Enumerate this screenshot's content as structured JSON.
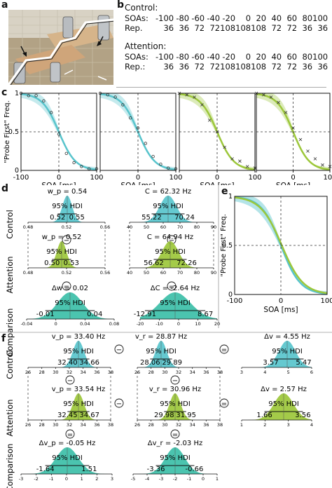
{
  "labels": {
    "a": "a",
    "b": "b",
    "c": "c",
    "d": "d",
    "e": "e",
    "f": "f"
  },
  "panel_b": {
    "control_title": "Control:",
    "attention_title": "Attention:",
    "soas_label": "SOAs:",
    "rep_label_control": "Rep.",
    "rep_label_attention": "Rep.:",
    "soas": [
      "-100",
      "-80",
      "-60",
      "-40",
      "-20",
      "0",
      "20",
      "40",
      "60",
      "80",
      "100"
    ],
    "rep_control": [
      "36",
      "36",
      "72",
      "72",
      "108",
      "108",
      "108",
      "72",
      "72",
      "36",
      "36"
    ],
    "rep_attention": [
      "36",
      "36",
      "72",
      "72",
      "108",
      "108",
      "108",
      "72",
      "72",
      "36",
      "36"
    ]
  },
  "panel_c": {
    "ylabel": "\"Probe First\" Freq.",
    "xlabel": "SOA [ms]",
    "yticks": [
      "1",
      "0.5",
      "0"
    ],
    "xticks": [
      "-100",
      "0",
      "100"
    ]
  },
  "panel_e": {
    "ylabel": "\"Probe First\" Freq.",
    "xlabel": "SOA [ms]",
    "yticks": [
      "1",
      "0.5",
      "0"
    ],
    "xticks": [
      "-100",
      "0",
      "100"
    ]
  },
  "row_labels": {
    "control": "Control",
    "attention": "Attention",
    "comparison": "Comparison"
  },
  "hdi": "95% HDI",
  "ops": {
    "minus": "−",
    "equals": "="
  },
  "panel_d": {
    "w_control": {
      "title": "w_p = 0.54",
      "lo": "0.52",
      "hi": "0.55",
      "ticks": [
        "0.48",
        "0.52",
        "0.56"
      ]
    },
    "w_attention": {
      "title": "w_p = 0.52",
      "lo": "0.50",
      "hi": "0.53",
      "ticks": [
        "0.48",
        "0.52",
        "0.56"
      ]
    },
    "w_comparison": {
      "title": "Δw = 0.02",
      "lo": "-0.01",
      "hi": "0.04",
      "ticks": [
        "-0.04",
        "0",
        "0.04",
        "0.08"
      ]
    },
    "c_control": {
      "title": "C = 62.32 Hz",
      "lo": "55.22",
      "hi": "70.24",
      "ticks": [
        "40",
        "50",
        "60",
        "70",
        "80",
        "90"
      ]
    },
    "c_attention": {
      "title": "C = 64.94 Hz",
      "lo": "56.62",
      "hi": "72.26",
      "ticks": [
        "40",
        "50",
        "60",
        "70",
        "80",
        "90"
      ]
    },
    "c_comparison": {
      "title": "ΔC = -2.64 Hz",
      "lo": "-12.91",
      "hi": "8.67",
      "ticks": [
        "-20",
        "-10",
        "0",
        "10",
        "20"
      ]
    }
  },
  "panel_f": {
    "vp_control": {
      "title": "v_p = 33.40 Hz",
      "lo": "32.40",
      "hi": "34.66",
      "ticks": [
        "26",
        "28",
        "30",
        "32",
        "34",
        "36",
        "38"
      ]
    },
    "vr_control": {
      "title": "v_r = 28.87 Hz",
      "lo": "28.06",
      "hi": "29.89",
      "ticks": [
        "26",
        "28",
        "30",
        "32",
        "34",
        "36",
        "38"
      ]
    },
    "dv_control": {
      "title": "Δv = 4.55 Hz",
      "lo": "3.57",
      "hi": "5.47",
      "ticks": [
        "3",
        "4",
        "5",
        "6"
      ]
    },
    "vp_attention": {
      "title": "v_p = 33.54 Hz",
      "lo": "32.45",
      "hi": "34.67",
      "ticks": [
        "26",
        "28",
        "30",
        "32",
        "34",
        "36",
        "38"
      ]
    },
    "vr_attention": {
      "title": "v_r = 30.96 Hz",
      "lo": "29.98",
      "hi": "31.95",
      "ticks": [
        "26",
        "28",
        "30",
        "32",
        "34",
        "36",
        "38"
      ]
    },
    "dv_attention": {
      "title": "Δv = 2.57 Hz",
      "lo": "1.66",
      "hi": "3.56",
      "ticks": [
        "1",
        "2",
        "3",
        "4"
      ]
    },
    "dvp_comparison": {
      "title": "Δv_p = -0.05 Hz",
      "lo": "-1.64",
      "hi": "1.51",
      "ticks": [
        "-3",
        "-2",
        "-1",
        "0",
        "1",
        "2",
        "3"
      ]
    },
    "dvr_comparison": {
      "title": "Δv_r = -2.03 Hz",
      "lo": "-3.36",
      "hi": "-0.66",
      "ticks": [
        "-5",
        "-4",
        "-3",
        "-2",
        "-1",
        "0",
        "1"
      ]
    }
  },
  "colors": {
    "control": "#58c4cc",
    "attention": "#9cc73a",
    "comparison": "#3cbfa8"
  },
  "chart_data": [
    {
      "type": "scatter",
      "panel": "c1",
      "condition": "control",
      "xlim": [
        -100,
        100
      ],
      "ylim": [
        0,
        1
      ],
      "x": [
        -100,
        -80,
        -60,
        -40,
        -20,
        0,
        20,
        40,
        60,
        80,
        100
      ],
      "y": [
        1,
        0.97,
        0.97,
        0.9,
        0.75,
        0.47,
        0.22,
        0.1,
        0.05,
        0.02,
        0.02
      ]
    },
    {
      "type": "scatter",
      "panel": "c2",
      "condition": "control",
      "xlim": [
        -100,
        100
      ],
      "ylim": [
        0,
        1
      ],
      "x": [
        -100,
        -80,
        -60,
        -40,
        -20,
        0,
        20,
        40,
        60,
        80,
        100
      ],
      "y": [
        1,
        0.98,
        0.95,
        0.85,
        0.68,
        0.55,
        0.35,
        0.18,
        0.08,
        0.03,
        0.02
      ]
    },
    {
      "type": "scatter",
      "panel": "c3",
      "condition": "attention",
      "xlim": [
        -100,
        100
      ],
      "ylim": [
        0,
        1
      ],
      "x": [
        -100,
        -80,
        -60,
        -40,
        -20,
        0,
        20,
        40,
        60,
        80,
        100
      ],
      "y": [
        1,
        0.98,
        0.95,
        0.85,
        0.65,
        0.5,
        0.3,
        0.15,
        0.12,
        0.05,
        0.03
      ]
    },
    {
      "type": "scatter",
      "panel": "c4",
      "condition": "attention",
      "xlim": [
        -100,
        100
      ],
      "ylim": [
        0,
        1
      ],
      "x": [
        -100,
        -80,
        -60,
        -40,
        -20,
        0,
        20,
        40,
        60,
        80,
        100
      ],
      "y": [
        1,
        0.98,
        0.95,
        0.88,
        0.75,
        0.55,
        0.4,
        0.25,
        0.15,
        0.07,
        0.05
      ]
    }
  ]
}
